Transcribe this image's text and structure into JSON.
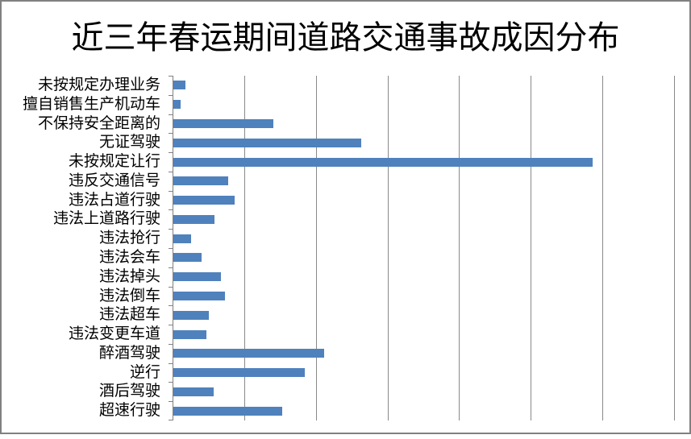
{
  "chart_data": {
    "type": "bar",
    "orientation": "horizontal",
    "title": "近三年春运期间道路交通事故成因分布",
    "categories": [
      "未按规定办理业务",
      "擅自销售生产机动车",
      "不保持安全距离的",
      "无证驾驶",
      "未按规定让行",
      "违反交通信号",
      "违法占道行驶",
      "违法上道路行驶",
      "违法抢行",
      "违法会车",
      "违法掉头",
      "违法倒车",
      "违法超车",
      "违法变更车道",
      "醉酒驾驶",
      "逆行",
      "酒后驾驶",
      "超速行驶"
    ],
    "values": [
      17,
      10,
      140,
      262,
      585,
      76,
      86,
      57,
      25,
      39,
      66,
      72,
      49,
      46,
      211,
      183,
      56,
      152
    ],
    "xlabel": "",
    "ylabel": "",
    "xlim": [
      0,
      700
    ],
    "grid_interval": 100,
    "grid": "vertical-only",
    "legend": "none",
    "axis_tick_labels_visible": false,
    "bar_color": "#4F81BD",
    "gridline_color": "#898989",
    "axis_color": "#808080",
    "frame_border_color": "#808080",
    "background_color": "#FFFFFF"
  }
}
